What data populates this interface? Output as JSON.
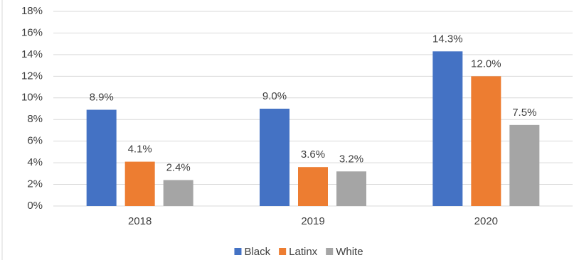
{
  "chart_data": {
    "type": "grouped-bar",
    "categories": [
      "2018",
      "2019",
      "2020"
    ],
    "series": [
      {
        "name": "Black",
        "color": "#4472c4",
        "values": [
          8.9,
          9.0,
          14.3
        ],
        "value_labels": [
          "8.9%",
          "9.0%",
          "14.3%"
        ]
      },
      {
        "name": "Latinx",
        "color": "#ed7d31",
        "values": [
          4.1,
          3.6,
          12.0
        ],
        "value_labels": [
          "4.1%",
          "3.6%",
          "12.0%"
        ]
      },
      {
        "name": "White",
        "color": "#a5a5a5",
        "values": [
          2.4,
          3.2,
          7.5
        ],
        "value_labels": [
          "2.4%",
          "3.2%",
          "7.5%"
        ]
      }
    ],
    "ylim": [
      0,
      18
    ],
    "yticks": [
      {
        "value": 0,
        "label": "0%"
      },
      {
        "value": 2,
        "label": "2%"
      },
      {
        "value": 4,
        "label": "4%"
      },
      {
        "value": 6,
        "label": "6%"
      },
      {
        "value": 8,
        "label": "8%"
      },
      {
        "value": 10,
        "label": "10%"
      },
      {
        "value": 12,
        "label": "12%"
      },
      {
        "value": 14,
        "label": "14%"
      },
      {
        "value": 16,
        "label": "16%"
      },
      {
        "value": 18,
        "label": "18%"
      }
    ],
    "grid": true,
    "legend": "bottom"
  }
}
